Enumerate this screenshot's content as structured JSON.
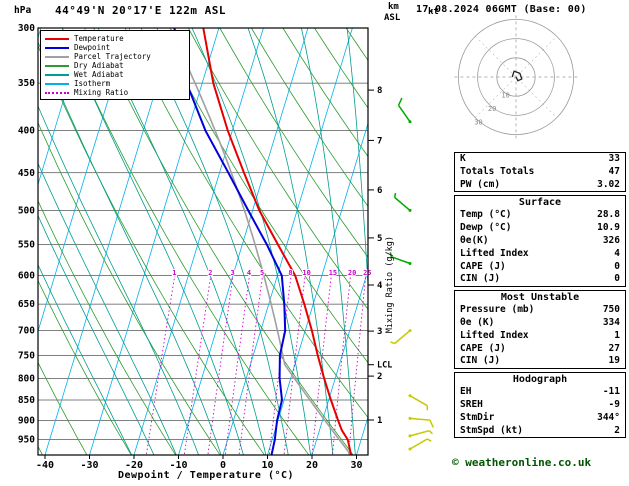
{
  "header": {
    "station": "44°49'N 20°17'E 122m ASL",
    "datetime": "17.08.2024 06GMT (Base: 00)"
  },
  "axes": {
    "pressure_unit": "hPa",
    "pressure_ticks": [
      300,
      350,
      400,
      450,
      500,
      550,
      600,
      650,
      700,
      750,
      800,
      850,
      900,
      950
    ],
    "temp_ticks": [
      -40,
      -30,
      -20,
      -10,
      0,
      10,
      20,
      30
    ],
    "xlabel": "Dewpoint / Temperature (°C)",
    "km_label_top": "km",
    "km_label_bottom": "ASL",
    "km_ticks": [
      1,
      2,
      3,
      4,
      5,
      6,
      7,
      8
    ],
    "mixing_ratio_label": "Mixing Ratio (g/kg)",
    "mixing_ratio_values": [
      1,
      2,
      3,
      4,
      5,
      8,
      10,
      15,
      20,
      25
    ],
    "lcl_label": "LCL"
  },
  "legend": [
    {
      "label": "Temperature",
      "color_key": "temperature",
      "style": "solid"
    },
    {
      "label": "Dewpoint",
      "color_key": "dewpoint",
      "style": "solid"
    },
    {
      "label": "Parcel Trajectory",
      "color_key": "parcel",
      "style": "solid"
    },
    {
      "label": "Dry Adiabat",
      "color_key": "dry_adiabat",
      "style": "solid"
    },
    {
      "label": "Wet Adiabat",
      "color_key": "wet_adiabat",
      "style": "solid"
    },
    {
      "label": "Isotherm",
      "color_key": "isotherm",
      "style": "solid"
    },
    {
      "label": "Mixing Ratio",
      "color_key": "mixing_ratio",
      "style": "dotted"
    }
  ],
  "colors": {
    "temperature": "#e60000",
    "dewpoint": "#0000dd",
    "parcel": "#a0a0a0",
    "dry_adiabat": "#2e9b2e",
    "wet_adiabat": "#009e8e",
    "isotherm": "#00b0f0",
    "mixing_ratio": "#cc00cc",
    "barb_green": "#00aa00",
    "barb_yellow": "#c8c800",
    "copyright": "#005500"
  },
  "chart_data": {
    "type": "skewt-logp-sounding",
    "pressure_range_hPa": [
      300,
      1000
    ],
    "temp_axis_range_C": [
      -40,
      40
    ],
    "pressure_hPa": [
      992,
      950,
      925,
      900,
      850,
      800,
      750,
      700,
      650,
      600,
      550,
      500,
      450,
      400,
      350,
      300
    ],
    "temperature_C": [
      28.8,
      27.0,
      25.0,
      23.5,
      20.5,
      17.5,
      14.5,
      11.5,
      8.0,
      4.0,
      -2.0,
      -8.5,
      -14.5,
      -21.0,
      -27.5,
      -33.5
    ],
    "dewpoint_C": [
      10.9,
      10.6,
      10.2,
      9.8,
      9.5,
      7.5,
      6.0,
      5.5,
      3.5,
      1.0,
      -4.5,
      -11.0,
      -18.0,
      -26.0,
      -33.5,
      -40.0
    ],
    "parcel": {
      "surface_pressure_hPa": 992,
      "surface_temp_C": 28.8,
      "surface_dewpoint_C": 10.9,
      "lcl_pressure_hPa": 770
    },
    "wind_barbs": [
      {
        "pressure_hPa": 390,
        "speed_kt": 10,
        "dir_deg": 325,
        "color": "green"
      },
      {
        "pressure_hPa": 500,
        "speed_kt": 5,
        "dir_deg": 310,
        "color": "green"
      },
      {
        "pressure_hPa": 580,
        "speed_kt": 5,
        "dir_deg": 290,
        "color": "green"
      },
      {
        "pressure_hPa": 700,
        "speed_kt": 5,
        "dir_deg": 230,
        "color": "yellow"
      },
      {
        "pressure_hPa": 840,
        "speed_kt": 5,
        "dir_deg": 120,
        "color": "yellow"
      },
      {
        "pressure_hPa": 895,
        "speed_kt": 10,
        "dir_deg": 95,
        "color": "yellow"
      },
      {
        "pressure_hPa": 940,
        "speed_kt": 5,
        "dir_deg": 75,
        "color": "yellow"
      },
      {
        "pressure_hPa": 975,
        "speed_kt": 5,
        "dir_deg": 60,
        "color": "yellow"
      }
    ],
    "hodograph": {
      "unit": "kt",
      "rings_kt": [
        10,
        20,
        30
      ],
      "trace_uv_kt": [
        [
          0,
          0
        ],
        [
          1,
          -2
        ],
        [
          3,
          -1
        ],
        [
          2,
          2
        ],
        [
          -1,
          3
        ],
        [
          -2,
          0
        ]
      ]
    }
  },
  "tables": [
    {
      "header": null,
      "rows": [
        [
          "K",
          "33"
        ],
        [
          "Totals Totals",
          "47"
        ],
        [
          "PW (cm)",
          "3.02"
        ]
      ]
    },
    {
      "header": "Surface",
      "rows": [
        [
          "Temp (°C)",
          "28.8"
        ],
        [
          "Dewp (°C)",
          "10.9"
        ],
        [
          "θe(K)",
          "326"
        ],
        [
          "Lifted Index",
          "4"
        ],
        [
          "CAPE (J)",
          "0"
        ],
        [
          "CIN (J)",
          "0"
        ]
      ]
    },
    {
      "header": "Most Unstable",
      "rows": [
        [
          "Pressure (mb)",
          "750"
        ],
        [
          "θe (K)",
          "334"
        ],
        [
          "Lifted Index",
          "1"
        ],
        [
          "CAPE (J)",
          "27"
        ],
        [
          "CIN (J)",
          "19"
        ]
      ]
    },
    {
      "header": "Hodograph",
      "rows": [
        [
          "EH",
          "-11"
        ],
        [
          "SREH",
          "-9"
        ],
        [
          "StmDir",
          "344°"
        ],
        [
          "StmSpd (kt)",
          "2"
        ]
      ]
    }
  ],
  "footer": {
    "copyright": "© weatheronline.co.uk"
  }
}
